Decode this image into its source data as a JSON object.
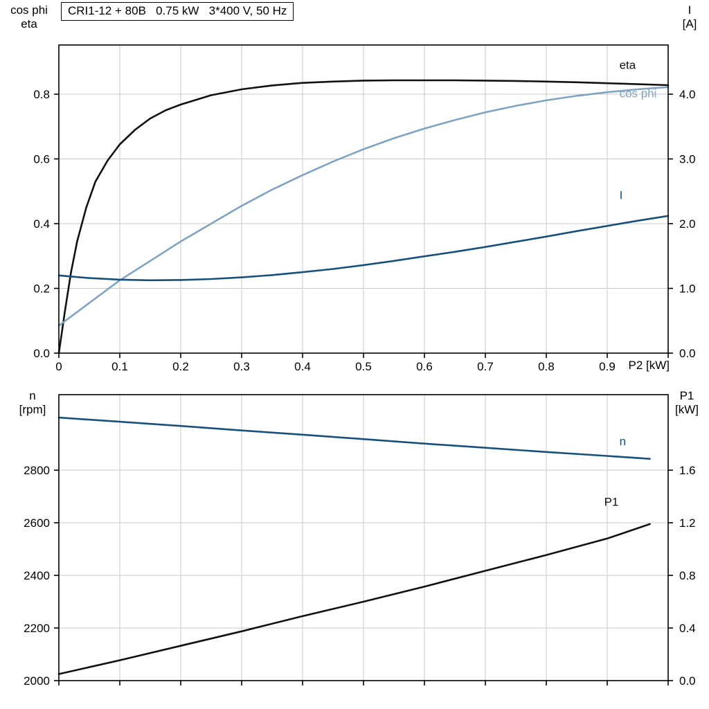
{
  "title_box": "CRI1-12 + 80B   0.75 kW   3*400 V, 50 Hz",
  "colors": {
    "eta": "#111111",
    "cos_phi": "#7fa3c2",
    "current": "#18507c",
    "speed": "#18507c",
    "p1": "#111111",
    "grid": "#c8c8c8",
    "axis": "#000000"
  },
  "chart_data": [
    {
      "type": "line",
      "xlabel": "P2 [kW]",
      "xrange": [
        0,
        1
      ],
      "x_ticks": [
        0,
        0.1,
        0.2,
        0.3,
        0.4,
        0.5,
        0.6,
        0.7,
        0.8,
        0.9,
        1
      ],
      "x_tick_labels": [
        "0",
        "0.1",
        "0.2",
        "0.3",
        "0.4",
        "0.5",
        "0.6",
        "0.7",
        "0.8",
        "0.9",
        ""
      ],
      "grid": true,
      "left_axis": {
        "title_lines": [
          "cos phi",
          "eta"
        ],
        "range": [
          0,
          0.952
        ],
        "ticks": [
          0,
          0.2,
          0.4,
          0.6,
          0.8
        ],
        "tick_labels": [
          "0.0",
          "0.2",
          "0.4",
          "0.6",
          "0.8"
        ]
      },
      "right_axis": {
        "title_lines": [
          "I",
          "[A]"
        ],
        "range": [
          0,
          4.76
        ],
        "ticks": [
          0,
          1,
          2,
          3,
          4
        ],
        "tick_labels": [
          "0.0",
          "1.0",
          "2.0",
          "3.0",
          "4.0"
        ]
      },
      "series": [
        {
          "label": "eta",
          "color_key": "eta",
          "axis": "left",
          "label_at": [
            0.92,
            0.878
          ],
          "x": [
            0,
            0.01,
            0.02,
            0.03,
            0.045,
            0.06,
            0.08,
            0.1,
            0.125,
            0.15,
            0.175,
            0.2,
            0.25,
            0.3,
            0.35,
            0.4,
            0.45,
            0.5,
            0.55,
            0.6,
            0.65,
            0.7,
            0.75,
            0.8,
            0.85,
            0.9,
            0.95,
            1
          ],
          "y": [
            0,
            0.13,
            0.25,
            0.345,
            0.45,
            0.53,
            0.595,
            0.645,
            0.69,
            0.725,
            0.75,
            0.768,
            0.797,
            0.815,
            0.827,
            0.835,
            0.839,
            0.842,
            0.843,
            0.843,
            0.843,
            0.842,
            0.841,
            0.839,
            0.837,
            0.834,
            0.831,
            0.828
          ]
        },
        {
          "label": "cos phi",
          "color_key": "cos_phi",
          "axis": "left",
          "label_at": [
            0.92,
            0.79
          ],
          "x": [
            0,
            0.05,
            0.1,
            0.15,
            0.2,
            0.25,
            0.3,
            0.35,
            0.4,
            0.45,
            0.5,
            0.55,
            0.6,
            0.65,
            0.7,
            0.75,
            0.8,
            0.85,
            0.9,
            0.95,
            1
          ],
          "y": [
            0.085,
            0.155,
            0.225,
            0.285,
            0.345,
            0.4,
            0.455,
            0.505,
            0.55,
            0.592,
            0.63,
            0.664,
            0.694,
            0.72,
            0.744,
            0.764,
            0.781,
            0.795,
            0.806,
            0.815,
            0.822
          ]
        },
        {
          "label": "I",
          "color_key": "current",
          "axis": "right",
          "label_at": [
            0.92,
            2.38
          ],
          "x": [
            0,
            0.05,
            0.1,
            0.15,
            0.2,
            0.25,
            0.3,
            0.35,
            0.4,
            0.45,
            0.5,
            0.55,
            0.6,
            0.65,
            0.7,
            0.75,
            0.8,
            0.85,
            0.9,
            0.95,
            1
          ],
          "y": [
            1.2,
            1.16,
            1.135,
            1.125,
            1.13,
            1.145,
            1.17,
            1.205,
            1.25,
            1.3,
            1.36,
            1.425,
            1.495,
            1.565,
            1.64,
            1.72,
            1.8,
            1.885,
            1.965,
            2.045,
            2.12
          ]
        }
      ]
    },
    {
      "type": "line",
      "xlabel": "",
      "xrange": [
        0,
        1
      ],
      "x_ticks": [
        0,
        0.1,
        0.2,
        0.3,
        0.4,
        0.5,
        0.6,
        0.7,
        0.8,
        0.9,
        1
      ],
      "x_tick_labels": [
        "",
        "",
        "",
        "",
        "",
        "",
        "",
        "",
        "",
        "",
        ""
      ],
      "grid": true,
      "left_axis": {
        "title_lines": [
          "n",
          "[rpm]"
        ],
        "range": [
          2000,
          3087
        ],
        "ticks": [
          2000,
          2200,
          2400,
          2600,
          2800
        ],
        "tick_labels": [
          "2000",
          "2200",
          "2400",
          "2600",
          "2800"
        ]
      },
      "right_axis": {
        "title_lines": [
          "P1",
          "[kW]"
        ],
        "range": [
          0,
          2.174
        ],
        "ticks": [
          0,
          0.4,
          0.8,
          1.2,
          1.6
        ],
        "tick_labels": [
          "0.0",
          "0.4",
          "0.8",
          "1.2",
          "1.6"
        ]
      },
      "series": [
        {
          "label": "n",
          "color_key": "speed",
          "axis": "left",
          "label_at": [
            0.92,
            2895
          ],
          "x": [
            0,
            0.1,
            0.2,
            0.3,
            0.4,
            0.5,
            0.6,
            0.7,
            0.8,
            0.9,
            0.97
          ],
          "y": [
            3000,
            2984,
            2968,
            2951,
            2935,
            2918,
            2901,
            2885,
            2869,
            2854,
            2843
          ]
        },
        {
          "label": "P1",
          "color_key": "p1",
          "axis": "right",
          "label_at": [
            0.895,
            1.33
          ],
          "x": [
            0,
            0.1,
            0.2,
            0.3,
            0.4,
            0.5,
            0.6,
            0.7,
            0.8,
            0.9,
            0.97
          ],
          "y": [
            0.05,
            0.155,
            0.265,
            0.375,
            0.49,
            0.6,
            0.715,
            0.835,
            0.955,
            1.08,
            1.19
          ]
        }
      ]
    }
  ]
}
